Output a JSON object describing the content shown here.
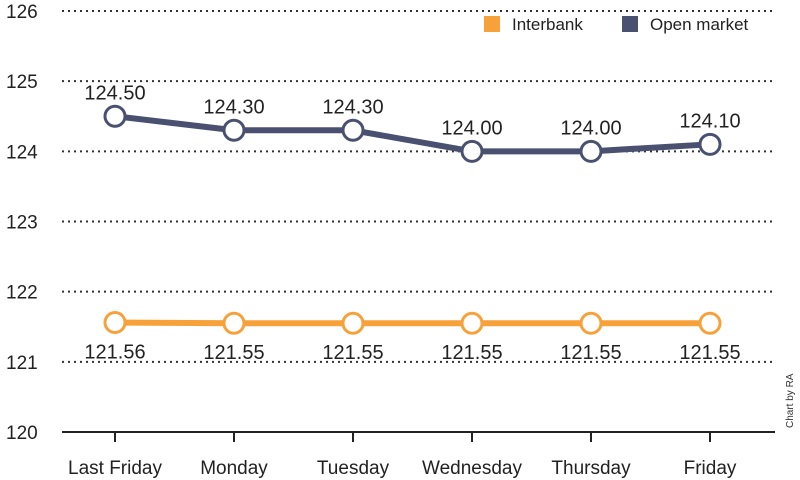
{
  "chart_data": {
    "type": "line",
    "categories": [
      "Last Friday",
      "Monday",
      "Tuesday",
      "Wednesday",
      "Thursday",
      "Friday"
    ],
    "series": [
      {
        "name": "Interbank",
        "color": "#f7a13a",
        "values": [
          121.56,
          121.55,
          121.55,
          121.55,
          121.55,
          121.55
        ],
        "labels": [
          "121.56",
          "121.55",
          "121.55",
          "121.55",
          "121.55",
          "121.55"
        ]
      },
      {
        "name": "Open market",
        "color": "#4a5170",
        "values": [
          124.5,
          124.3,
          124.3,
          124.0,
          124.0,
          124.1
        ],
        "labels": [
          "124.50",
          "124.30",
          "124.30",
          "124.00",
          "124.00",
          "124.10"
        ]
      }
    ],
    "ylim": [
      120,
      126
    ],
    "yticks": [
      "120",
      "121",
      "122",
      "123",
      "124",
      "125",
      "126"
    ],
    "grid": true,
    "grid_style": "dotted",
    "legend_position": "top-right",
    "credit": "Chart by RA"
  }
}
